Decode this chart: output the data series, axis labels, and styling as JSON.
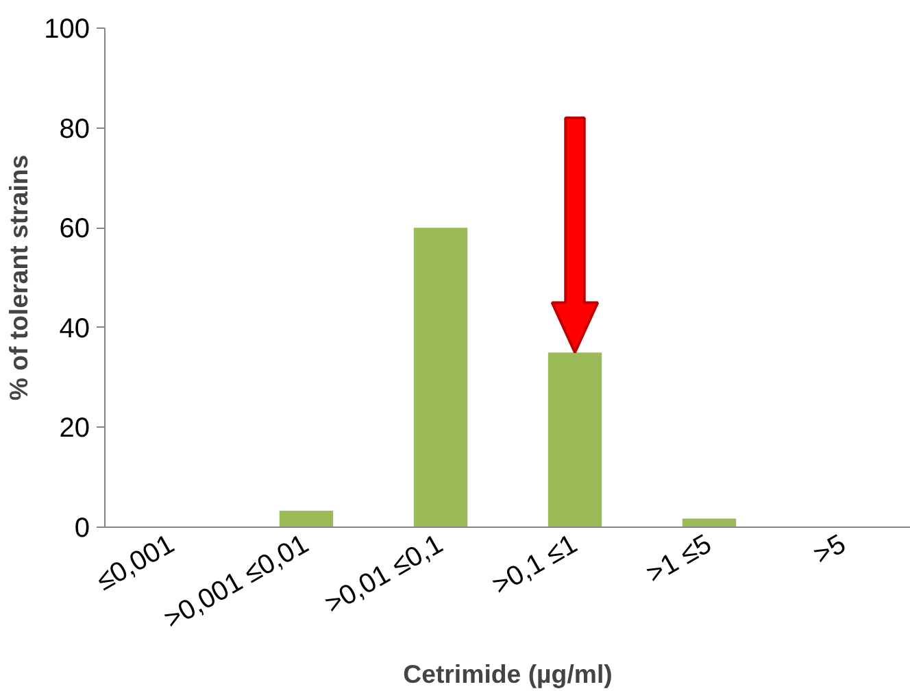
{
  "chart_data": {
    "type": "bar",
    "xlabel": "Cetrimide (µg/ml)",
    "ylabel": "% of tolerant strains",
    "categories": [
      "≤0,001",
      ">0,001 ≤0,01",
      ">0,01 ≤0,1",
      ">0,1 ≤1",
      ">1 ≤5",
      ">5"
    ],
    "values": [
      0,
      3.3,
      60,
      35,
      1.7,
      0
    ],
    "color": "#9bbb59",
    "ylim": [
      0,
      100
    ],
    "yticks": [
      0,
      20,
      40,
      60,
      80,
      100
    ],
    "grid": false
  }
}
